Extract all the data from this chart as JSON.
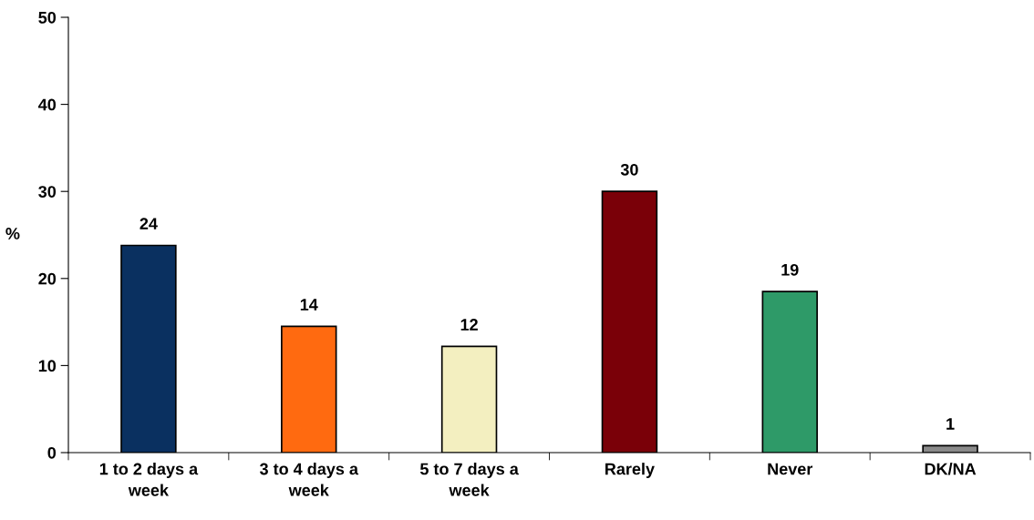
{
  "chart_data": {
    "type": "bar",
    "categories": [
      "1 to 2 days a\nweek",
      "3 to 4 days a\nweek",
      "5 to 7 days a\nweek",
      "Rarely",
      "Never",
      "DK/NA"
    ],
    "values": [
      23.8,
      14.5,
      12.2,
      30,
      18.5,
      0.8
    ],
    "value_labels": [
      "24",
      "14",
      "12",
      "30",
      "19",
      "1"
    ],
    "colors": [
      "#0a3060",
      "#ff6a10",
      "#f3efc0",
      "#7a0008",
      "#2e9a68",
      "#8a8a8a"
    ],
    "ylabel": "%",
    "ylim": [
      0,
      50
    ],
    "yticks": [
      0,
      10,
      20,
      30,
      40,
      50
    ],
    "grid": false,
    "legend": false
  }
}
